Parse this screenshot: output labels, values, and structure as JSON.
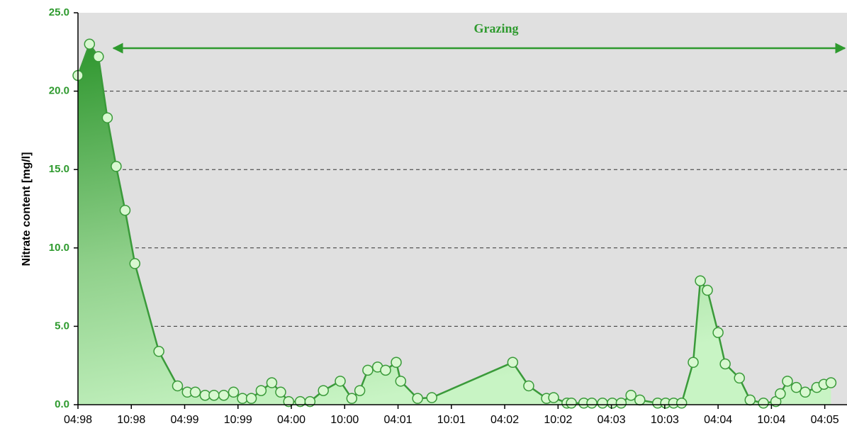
{
  "chart_data": {
    "type": "area",
    "y_label": "Nitrate content [mg/l]",
    "annotation": "Grazing",
    "color": "#3a9a3a",
    "marker_color": "#d8f8d0",
    "grid": true,
    "xlim": [
      0,
      86.5
    ],
    "xticks": [
      {
        "value": 0,
        "label": "04:98"
      },
      {
        "value": 6,
        "label": "10:98"
      },
      {
        "value": 12,
        "label": "04:99"
      },
      {
        "value": 18,
        "label": "10:99"
      },
      {
        "value": 24,
        "label": "04:00"
      },
      {
        "value": 30,
        "label": "10:00"
      },
      {
        "value": 36,
        "label": "04:01"
      },
      {
        "value": 42,
        "label": "10:01"
      },
      {
        "value": 48,
        "label": "04:02"
      },
      {
        "value": 54,
        "label": "10:02"
      },
      {
        "value": 60,
        "label": "04:03"
      },
      {
        "value": 66,
        "label": "10:03"
      },
      {
        "value": 72,
        "label": "04:04"
      },
      {
        "value": 78,
        "label": "10:04"
      },
      {
        "value": 84,
        "label": "04:05"
      }
    ],
    "ylim": [
      0,
      25
    ],
    "yticks": [
      {
        "value": 0,
        "label": "0.0"
      },
      {
        "value": 5,
        "label": "5.0"
      },
      {
        "value": 10,
        "label": "10.0"
      },
      {
        "value": 15,
        "label": "15.0"
      },
      {
        "value": 20,
        "label": "20.0"
      },
      {
        "value": 25,
        "label": "25.0"
      }
    ],
    "x": [
      0,
      1.3,
      2.3,
      3.3,
      4.3,
      5.3,
      6.4,
      9.1,
      11.2,
      12.3,
      13.2,
      14.3,
      15.3,
      16.4,
      17.5,
      18.5,
      19.5,
      20.6,
      21.8,
      22.8,
      23.7,
      25.0,
      26.1,
      27.6,
      29.5,
      30.8,
      31.7,
      32.6,
      33.7,
      34.6,
      35.8,
      36.3,
      38.2,
      39.8,
      48.9,
      50.7,
      52.7,
      53.5,
      55.0,
      55.5,
      56.9,
      57.8,
      59.0,
      60.1,
      61.1,
      62.2,
      63.2,
      65.2,
      66.1,
      67.0,
      67.9,
      69.2,
      70.0,
      70.8,
      72.0,
      72.8,
      74.4,
      75.6,
      77.1,
      78.5,
      79.0,
      79.8,
      80.8,
      81.8,
      83.1,
      83.9,
      84.7
    ],
    "values": [
      21.0,
      23.0,
      22.2,
      18.3,
      15.2,
      12.4,
      9.0,
      3.4,
      1.2,
      0.8,
      0.8,
      0.6,
      0.6,
      0.6,
      0.8,
      0.4,
      0.4,
      0.9,
      1.4,
      0.8,
      0.2,
      0.2,
      0.2,
      0.9,
      1.5,
      0.4,
      0.9,
      2.2,
      2.4,
      2.2,
      2.7,
      1.5,
      0.4,
      0.45,
      2.7,
      1.2,
      0.4,
      0.45,
      0.1,
      0.1,
      0.1,
      0.1,
      0.1,
      0.1,
      0.1,
      0.6,
      0.3,
      0.1,
      0.1,
      0.1,
      0.1,
      2.7,
      7.9,
      7.3,
      4.6,
      2.6,
      1.7,
      0.3,
      0.1,
      0.2,
      0.7,
      1.5,
      1.1,
      0.8,
      1.1,
      1.3,
      1.4
    ]
  }
}
